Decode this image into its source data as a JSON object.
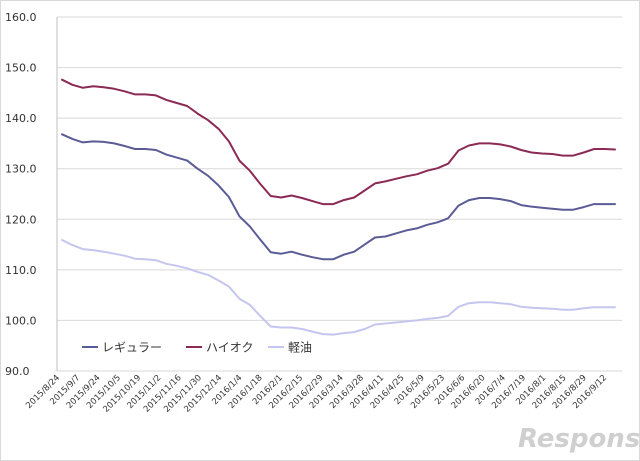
{
  "watermark": "Response.",
  "colors": {
    "regular": "#5b5b96",
    "highoctane": "#8b2a55",
    "diesel": "#c5c6ef"
  },
  "chart_data": {
    "type": "line",
    "title": "",
    "xlabel": "",
    "ylabel": "",
    "ylim": [
      90,
      160
    ],
    "yticks": [
      90,
      100,
      110,
      120,
      130,
      140,
      150,
      160
    ],
    "ytick_labels": [
      "90.0",
      "100.0",
      "110.0",
      "120.0",
      "130.0",
      "140.0",
      "150.0",
      "160.0"
    ],
    "grid": true,
    "legend_position": "bottom-left",
    "x_tick_labels": [
      "2015/8/24",
      "2015/9/7",
      "2015/9/24",
      "2015/10/5",
      "2015/10/19",
      "2015/11/2",
      "2015/11/16",
      "2015/11/30",
      "2015/12/14",
      "2016/1/4",
      "2016/1/18",
      "2016/2/1",
      "2016/2/15",
      "2016/2/29",
      "2016/3/14",
      "2016/3/28",
      "2016/4/11",
      "2016/4/25",
      "2016/5/9",
      "2016/5/23",
      "2016/6/6",
      "2016/6/20",
      "2016/7/4",
      "2016/7/19",
      "2016/8/1",
      "2016/8/15",
      "2016/8/29",
      "2016/9/12"
    ],
    "series": [
      {
        "name": "レギュラー",
        "color": "#5b5b96",
        "values": [
          136.8,
          135.9,
          135.2,
          135.4,
          135.3,
          135.0,
          134.5,
          133.9,
          133.9,
          133.7,
          132.8,
          132.2,
          131.6,
          130.0,
          128.6,
          126.7,
          124.4,
          120.6,
          118.6,
          116.0,
          113.5,
          113.2,
          113.6,
          113.0,
          112.5,
          112.1,
          112.1,
          113.0,
          113.6,
          115.0,
          116.4,
          116.6,
          117.2,
          117.8,
          118.2,
          118.9,
          119.4,
          120.2,
          122.7,
          123.8,
          124.2,
          124.2,
          124.0,
          123.6,
          122.8,
          122.5,
          122.3,
          122.1,
          121.9,
          121.9,
          122.4,
          123.0,
          123.0,
          123.0
        ]
      },
      {
        "name": "ハイオク",
        "color": "#8b2a55",
        "values": [
          147.6,
          146.6,
          146.0,
          146.3,
          146.1,
          145.8,
          145.3,
          144.7,
          144.7,
          144.5,
          143.6,
          143.0,
          142.4,
          140.9,
          139.6,
          137.9,
          135.4,
          131.6,
          129.6,
          127.0,
          124.6,
          124.3,
          124.7,
          124.2,
          123.6,
          123.0,
          123.0,
          123.8,
          124.3,
          125.7,
          127.1,
          127.5,
          128.0,
          128.5,
          128.9,
          129.6,
          130.1,
          131.0,
          133.6,
          134.6,
          135.0,
          135.0,
          134.8,
          134.4,
          133.7,
          133.2,
          133.0,
          132.9,
          132.6,
          132.6,
          133.2,
          133.9,
          133.9,
          133.8
        ]
      },
      {
        "name": "軽油",
        "color": "#c5c6ef",
        "values": [
          115.9,
          114.9,
          114.1,
          113.9,
          113.6,
          113.2,
          112.8,
          112.2,
          112.1,
          111.9,
          111.2,
          110.8,
          110.3,
          109.6,
          109.0,
          107.9,
          106.7,
          104.3,
          103.1,
          100.9,
          98.8,
          98.6,
          98.6,
          98.3,
          97.8,
          97.3,
          97.2,
          97.5,
          97.7,
          98.3,
          99.2,
          99.4,
          99.6,
          99.8,
          100.0,
          100.3,
          100.5,
          100.9,
          102.7,
          103.4,
          103.6,
          103.6,
          103.4,
          103.2,
          102.7,
          102.5,
          102.4,
          102.3,
          102.1,
          102.1,
          102.4,
          102.6,
          102.6,
          102.6
        ]
      }
    ]
  }
}
